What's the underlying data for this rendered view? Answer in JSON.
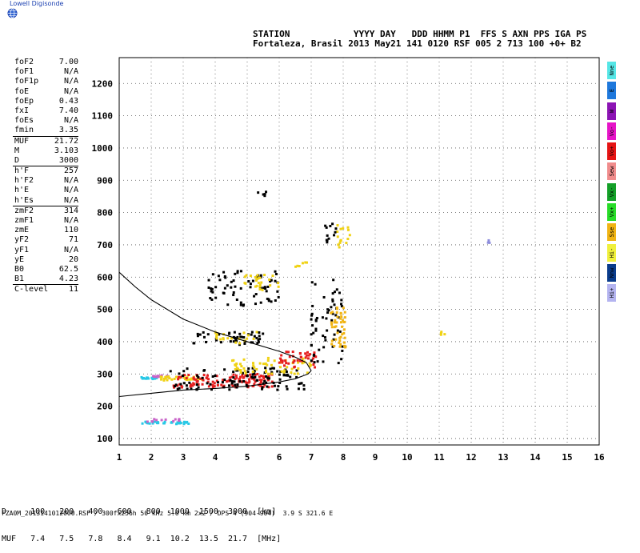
{
  "brand": {
    "name": "Lowell Digisonde",
    "icon": "globe-icon"
  },
  "header": {
    "line1": "STATION            YYYY DAY   DDD HHMM P1  FFS S AXN PPS IGA PS",
    "line2": "Fortaleza, Brasil 2013 May21 141 0120 RSF 005 2 713 100 +0+ B2"
  },
  "params": [
    [
      [
        "foF2",
        "7.00"
      ],
      [
        "foF1",
        "N/A"
      ],
      [
        "foF1p",
        "N/A"
      ],
      [
        "foE",
        "N/A"
      ],
      [
        "foEp",
        "0.43"
      ],
      [
        "fxI",
        "7.40"
      ],
      [
        "foEs",
        "N/A"
      ],
      [
        "fmin",
        "3.35"
      ]
    ],
    [
      [
        "MUF",
        "21.72"
      ],
      [
        "M",
        "3.103"
      ],
      [
        "D",
        "3000"
      ]
    ],
    [
      [
        "h'F",
        "257"
      ],
      [
        "h'F2",
        "N/A"
      ],
      [
        "h'E",
        "N/A"
      ],
      [
        "h'Es",
        "N/A"
      ]
    ],
    [
      [
        "zmF2",
        "314"
      ],
      [
        "zmF1",
        "N/A"
      ],
      [
        "zmE",
        "110"
      ],
      [
        "yF2",
        "71"
      ],
      [
        "yF1",
        "N/A"
      ],
      [
        "yE",
        "20"
      ],
      [
        "B0",
        "62.5"
      ],
      [
        "B1",
        "4.23"
      ]
    ],
    [
      [
        "C-level",
        "11"
      ]
    ]
  ],
  "legend": [
    {
      "label": "Nne",
      "color": "#55e6e6"
    },
    {
      "label": "E",
      "color": "#1e78dc"
    },
    {
      "label": "W",
      "color": "#8c14b4"
    },
    {
      "label": "Vo-",
      "color": "#e614c8"
    },
    {
      "label": "Vo+",
      "color": "#e61414"
    },
    {
      "label": "Sew",
      "color": "#f08c8c"
    },
    {
      "label": "Vx-",
      "color": "#14a028"
    },
    {
      "label": "Vx+",
      "color": "#28dc28"
    },
    {
      "label": "Sse",
      "color": "#f0b414"
    },
    {
      "label": "Hi-",
      "color": "#f0f03c"
    },
    {
      "label": "Nnw",
      "color": "#0a3c8c"
    },
    {
      "label": "Hi+",
      "color": "#b4b4f0"
    }
  ],
  "chart_data": {
    "type": "scatter",
    "xlim": [
      1,
      16
    ],
    "ylim": [
      80,
      1280
    ],
    "x_ticks": [
      1,
      2,
      3,
      4,
      5,
      6,
      7,
      8,
      9,
      10,
      11,
      12,
      13,
      14,
      15,
      16
    ],
    "y_ticks": [
      100,
      200,
      300,
      400,
      500,
      600,
      700,
      800,
      900,
      1000,
      1100,
      1200
    ],
    "grid": true,
    "profile_curve": {
      "upper": [
        [
          1.0,
          615
        ],
        [
          1.5,
          570
        ],
        [
          2.0,
          530
        ],
        [
          3.0,
          470
        ],
        [
          4.0,
          430
        ],
        [
          5.0,
          400
        ],
        [
          6.0,
          370
        ],
        [
          6.5,
          352
        ],
        [
          6.85,
          335
        ],
        [
          7.0,
          310
        ]
      ],
      "lower": [
        [
          1.0,
          230
        ],
        [
          2.0,
          240
        ],
        [
          3.0,
          250
        ],
        [
          4.0,
          255
        ],
        [
          5.0,
          262
        ],
        [
          6.0,
          275
        ],
        [
          6.5,
          285
        ],
        [
          6.9,
          300
        ],
        [
          7.0,
          310
        ]
      ]
    },
    "echo_clusters": [
      {
        "color": "#28c8e6",
        "x": [
          1.7,
          2.2
        ],
        "y": [
          284,
          290
        ],
        "n": 22
      },
      {
        "color": "#c864c8",
        "x": [
          1.8,
          2.6
        ],
        "y": [
          290,
          296
        ],
        "n": 14
      },
      {
        "color": "#f0d214",
        "x": [
          2.3,
          3.6
        ],
        "y": [
          280,
          292
        ],
        "n": 30
      },
      {
        "color": "#e61e1e",
        "x": [
          2.7,
          5.8
        ],
        "y": [
          258,
          300
        ],
        "n": 120
      },
      {
        "color": "#000000",
        "x": [
          2.6,
          6.8
        ],
        "y": [
          250,
          320
        ],
        "n": 110
      },
      {
        "color": "#f0d214",
        "x": [
          4.5,
          7.0
        ],
        "y": [
          300,
          350
        ],
        "n": 60
      },
      {
        "color": "#e61e1e",
        "x": [
          6.0,
          7.2
        ],
        "y": [
          320,
          370
        ],
        "n": 40
      },
      {
        "color": "#000000",
        "x": [
          7.0,
          8.0
        ],
        "y": [
          330,
          600
        ],
        "n": 60
      },
      {
        "color": "#f0b414",
        "x": [
          7.6,
          8.1
        ],
        "y": [
          380,
          510
        ],
        "n": 45
      },
      {
        "color": "#000000",
        "x": [
          3.8,
          6.0
        ],
        "y": [
          510,
          620
        ],
        "n": 70
      },
      {
        "color": "#f0d214",
        "x": [
          4.8,
          6.0
        ],
        "y": [
          560,
          610
        ],
        "n": 25
      },
      {
        "color": "#000000",
        "x": [
          3.3,
          5.6
        ],
        "y": [
          390,
          430
        ],
        "n": 45
      },
      {
        "color": "#f0d214",
        "x": [
          4.0,
          5.3
        ],
        "y": [
          395,
          430
        ],
        "n": 20
      },
      {
        "color": "#28c8e6",
        "x": [
          1.7,
          3.2
        ],
        "y": [
          145,
          152
        ],
        "n": 30
      },
      {
        "color": "#c864c8",
        "x": [
          1.8,
          2.9
        ],
        "y": [
          152,
          160
        ],
        "n": 12
      },
      {
        "color": "#f0d214",
        "x": [
          7.8,
          8.3
        ],
        "y": [
          690,
          780
        ],
        "n": 15
      },
      {
        "color": "#000000",
        "x": [
          7.4,
          7.9
        ],
        "y": [
          700,
          770
        ],
        "n": 12
      },
      {
        "color": "#f0d214",
        "x": [
          6.5,
          6.9
        ],
        "y": [
          630,
          650
        ],
        "n": 6
      },
      {
        "color": "#000000",
        "x": [
          5.3,
          5.6
        ],
        "y": [
          840,
          865
        ],
        "n": 5
      },
      {
        "color": "#f0d214",
        "x": [
          11.0,
          11.2
        ],
        "y": [
          420,
          440
        ],
        "n": 4
      },
      {
        "color": "#8c8cdc",
        "x": [
          12.5,
          12.6
        ],
        "y": [
          705,
          715
        ],
        "n": 3
      }
    ]
  },
  "muf_table": {
    "line1": "D     100   200   400   600   800  1000  1500  3000  [km]",
    "line2": "MUF   7.4   7.5   7.8   8.4   9.1  10.2  13.5  21.7  [MHz]"
  },
  "footer": "FZA0M_2013141012000.RSF / 300fx256h 50 kHz 5.0 km 2x2 / DPS-4 (904-904)  3.9 S 321.6 E"
}
